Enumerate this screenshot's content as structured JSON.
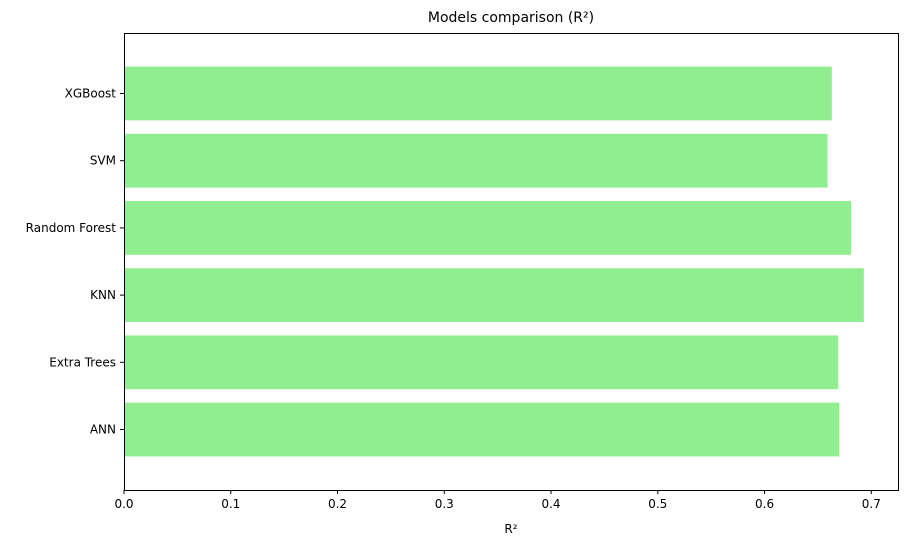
{
  "chart_data": {
    "type": "bar",
    "orientation": "horizontal",
    "title": "Models comparison (R²)",
    "xlabel": "R²",
    "ylabel": "",
    "categories": [
      "ANN",
      "Extra Trees",
      "KNN",
      "Random Forest",
      "SVM",
      "XGBoost"
    ],
    "values": [
      0.67,
      0.669,
      0.693,
      0.681,
      0.659,
      0.663
    ],
    "xlim": [
      0,
      0.725
    ],
    "xticks": [
      "0.0",
      "0.1",
      "0.2",
      "0.3",
      "0.4",
      "0.5",
      "0.6",
      "0.7"
    ],
    "bar_color": "#90ee90",
    "grid": false,
    "legend": "none"
  }
}
